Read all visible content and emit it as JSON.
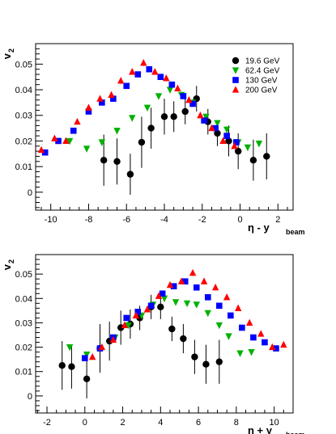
{
  "chart_data": [
    {
      "type": "scatter",
      "ylabel_main": "v",
      "ylabel_sub": "2",
      "xlabel_main": "η - y",
      "xlabel_sub": "beam",
      "xlim": [
        -10.8,
        2.8
      ],
      "ylim": [
        -0.007,
        0.058
      ],
      "xticks": [
        -10,
        -8,
        -6,
        -4,
        -2,
        0,
        2
      ],
      "yticks": [
        0,
        0.01,
        0.02,
        0.03,
        0.04,
        0.05
      ],
      "ytick_labels": [
        "0",
        "0.01",
        "0.02",
        "0.03",
        "0.04",
        "0.05"
      ],
      "legend_position": "top-right",
      "series": [
        {
          "name": "19.6 GeV",
          "marker": "circle",
          "color": "#000000",
          "points": [
            {
              "x": -7.2,
              "y": 0.0125,
              "e": 0.01
            },
            {
              "x": -6.5,
              "y": 0.012,
              "e": 0.009
            },
            {
              "x": -5.8,
              "y": 0.007,
              "e": 0.008
            },
            {
              "x": -5.2,
              "y": 0.0195,
              "e": 0.01
            },
            {
              "x": -4.7,
              "y": 0.025,
              "e": 0.008
            },
            {
              "x": -4.0,
              "y": 0.0295,
              "e": 0.007
            },
            {
              "x": -3.5,
              "y": 0.0295,
              "e": 0.006
            },
            {
              "x": -2.9,
              "y": 0.0315,
              "e": 0.005
            },
            {
              "x": -2.3,
              "y": 0.0365,
              "e": 0.005
            },
            {
              "x": -1.7,
              "y": 0.0275,
              "e": 0.005
            },
            {
              "x": -1.2,
              "y": 0.023,
              "e": 0.005
            },
            {
              "x": -0.6,
              "y": 0.02,
              "e": 0.006
            },
            {
              "x": -0.1,
              "y": 0.016,
              "e": 0.007
            },
            {
              "x": 0.7,
              "y": 0.0125,
              "e": 0.008
            },
            {
              "x": 1.4,
              "y": 0.014,
              "e": 0.009
            }
          ]
        },
        {
          "name": "62.4 GeV",
          "marker": "triangle-down",
          "color": "#00b200",
          "points": [
            {
              "x": -9.0,
              "y": 0.02,
              "e": 0.0012
            },
            {
              "x": -8.1,
              "y": 0.017,
              "e": 0.0012
            },
            {
              "x": -7.3,
              "y": 0.0195,
              "e": 0.0012
            },
            {
              "x": -6.5,
              "y": 0.024,
              "e": 0.0012
            },
            {
              "x": -5.7,
              "y": 0.029,
              "e": 0.0012
            },
            {
              "x": -4.9,
              "y": 0.033,
              "e": 0.0012
            },
            {
              "x": -4.3,
              "y": 0.0375,
              "e": 0.0012
            },
            {
              "x": -3.7,
              "y": 0.04,
              "e": 0.0012
            },
            {
              "x": -3.1,
              "y": 0.038,
              "e": 0.0012
            },
            {
              "x": -2.5,
              "y": 0.035,
              "e": 0.0012
            },
            {
              "x": -1.8,
              "y": 0.0295,
              "e": 0.0012
            },
            {
              "x": -1.2,
              "y": 0.027,
              "e": 0.0012
            },
            {
              "x": -0.7,
              "y": 0.0245,
              "e": 0.0012
            },
            {
              "x": -0.1,
              "y": 0.0195,
              "e": 0.0012
            },
            {
              "x": 0.4,
              "y": 0.0175,
              "e": 0.0012
            },
            {
              "x": 1.0,
              "y": 0.019,
              "e": 0.0012
            }
          ]
        },
        {
          "name": "130 GeV",
          "marker": "square",
          "color": "#0000ff",
          "points": [
            {
              "x": -10.3,
              "y": 0.0155,
              "e": 0.001
            },
            {
              "x": -9.6,
              "y": 0.02,
              "e": 0.001
            },
            {
              "x": -8.8,
              "y": 0.024,
              "e": 0.001
            },
            {
              "x": -8.0,
              "y": 0.0315,
              "e": 0.001
            },
            {
              "x": -7.3,
              "y": 0.035,
              "e": 0.001
            },
            {
              "x": -6.7,
              "y": 0.0365,
              "e": 0.001
            },
            {
              "x": -6.0,
              "y": 0.0415,
              "e": 0.001
            },
            {
              "x": -5.4,
              "y": 0.046,
              "e": 0.001
            },
            {
              "x": -4.8,
              "y": 0.048,
              "e": 0.001
            },
            {
              "x": -4.2,
              "y": 0.045,
              "e": 0.001
            },
            {
              "x": -3.6,
              "y": 0.042,
              "e": 0.001
            },
            {
              "x": -3.0,
              "y": 0.0375,
              "e": 0.001
            },
            {
              "x": -2.5,
              "y": 0.0345,
              "e": 0.001
            },
            {
              "x": -1.9,
              "y": 0.028,
              "e": 0.001
            },
            {
              "x": -1.3,
              "y": 0.025,
              "e": 0.001
            },
            {
              "x": -0.7,
              "y": 0.022,
              "e": 0.001
            },
            {
              "x": -0.2,
              "y": 0.0195,
              "e": 0.001
            }
          ]
        },
        {
          "name": "200 GeV",
          "marker": "triangle-up",
          "color": "#ff0000",
          "points": [
            {
              "x": -10.5,
              "y": 0.0165,
              "e": 0.001
            },
            {
              "x": -9.8,
              "y": 0.021,
              "e": 0.001
            },
            {
              "x": -9.2,
              "y": 0.02,
              "e": 0.001
            },
            {
              "x": -8.6,
              "y": 0.0275,
              "e": 0.001
            },
            {
              "x": -8.0,
              "y": 0.033,
              "e": 0.001
            },
            {
              "x": -7.4,
              "y": 0.0365,
              "e": 0.001
            },
            {
              "x": -6.8,
              "y": 0.038,
              "e": 0.001
            },
            {
              "x": -6.3,
              "y": 0.0435,
              "e": 0.0012
            },
            {
              "x": -5.7,
              "y": 0.047,
              "e": 0.0012
            },
            {
              "x": -5.1,
              "y": 0.0505,
              "e": 0.0012
            },
            {
              "x": -4.5,
              "y": 0.047,
              "e": 0.0012
            },
            {
              "x": -3.9,
              "y": 0.0445,
              "e": 0.0012
            },
            {
              "x": -3.3,
              "y": 0.0405,
              "e": 0.0012
            },
            {
              "x": -2.7,
              "y": 0.036,
              "e": 0.001
            },
            {
              "x": -2.1,
              "y": 0.03,
              "e": 0.001
            },
            {
              "x": -1.5,
              "y": 0.025,
              "e": 0.001
            },
            {
              "x": -0.9,
              "y": 0.02,
              "e": 0.001
            },
            {
              "x": -0.3,
              "y": 0.018,
              "e": 0.001
            }
          ]
        }
      ]
    },
    {
      "type": "scatter",
      "ylabel_main": "v",
      "ylabel_sub": "2",
      "xlabel_main": "η + y",
      "xlabel_sub": "beam",
      "xlim": [
        -2.6,
        11.0
      ],
      "ylim": [
        -0.007,
        0.058
      ],
      "xticks": [
        -2,
        0,
        2,
        4,
        6,
        8,
        10
      ],
      "yticks": [
        0,
        0.01,
        0.02,
        0.03,
        0.04,
        0.05
      ],
      "ytick_labels": [
        "0",
        "0.01",
        "0.02",
        "0.03",
        "0.04",
        "0.05"
      ],
      "legend_position": "none",
      "series": [
        {
          "name": "19.6 GeV",
          "marker": "circle",
          "color": "#000000",
          "points": [
            {
              "x": -1.2,
              "y": 0.0125,
              "e": 0.01
            },
            {
              "x": -0.7,
              "y": 0.012,
              "e": 0.009
            },
            {
              "x": 0.1,
              "y": 0.007,
              "e": 0.008
            },
            {
              "x": 0.8,
              "y": 0.0195,
              "e": 0.01
            },
            {
              "x": 1.3,
              "y": 0.0225,
              "e": 0.008
            },
            {
              "x": 1.9,
              "y": 0.028,
              "e": 0.007
            },
            {
              "x": 2.4,
              "y": 0.0295,
              "e": 0.006
            },
            {
              "x": 2.9,
              "y": 0.032,
              "e": 0.005
            },
            {
              "x": 3.5,
              "y": 0.0365,
              "e": 0.005
            },
            {
              "x": 4.0,
              "y": 0.0365,
              "e": 0.005
            },
            {
              "x": 4.6,
              "y": 0.0275,
              "e": 0.005
            },
            {
              "x": 5.2,
              "y": 0.0235,
              "e": 0.006
            },
            {
              "x": 5.8,
              "y": 0.016,
              "e": 0.007
            },
            {
              "x": 6.4,
              "y": 0.013,
              "e": 0.008
            },
            {
              "x": 7.1,
              "y": 0.014,
              "e": 0.009
            }
          ]
        },
        {
          "name": "62.4 GeV",
          "marker": "triangle-down",
          "color": "#00b200",
          "points": [
            {
              "x": -0.8,
              "y": 0.02,
              "e": 0.0012
            },
            {
              "x": 0.1,
              "y": 0.017,
              "e": 0.0012
            },
            {
              "x": 0.8,
              "y": 0.0195,
              "e": 0.0012
            },
            {
              "x": 1.6,
              "y": 0.024,
              "e": 0.0012
            },
            {
              "x": 2.3,
              "y": 0.029,
              "e": 0.0012
            },
            {
              "x": 3.0,
              "y": 0.033,
              "e": 0.0012
            },
            {
              "x": 3.6,
              "y": 0.0375,
              "e": 0.0012
            },
            {
              "x": 4.2,
              "y": 0.04,
              "e": 0.0012
            },
            {
              "x": 4.8,
              "y": 0.0385,
              "e": 0.0012
            },
            {
              "x": 5.4,
              "y": 0.038,
              "e": 0.0012
            },
            {
              "x": 5.9,
              "y": 0.0375,
              "e": 0.0012
            },
            {
              "x": 6.5,
              "y": 0.034,
              "e": 0.0012
            },
            {
              "x": 7.1,
              "y": 0.029,
              "e": 0.0012
            },
            {
              "x": 7.6,
              "y": 0.0245,
              "e": 0.0012
            },
            {
              "x": 8.2,
              "y": 0.0175,
              "e": 0.0012
            },
            {
              "x": 8.8,
              "y": 0.018,
              "e": 0.0012
            }
          ]
        },
        {
          "name": "130 GeV",
          "marker": "square",
          "color": "#0000ff",
          "points": [
            {
              "x": 0.0,
              "y": 0.0155,
              "e": 0.001
            },
            {
              "x": 0.8,
              "y": 0.0195,
              "e": 0.001
            },
            {
              "x": 1.5,
              "y": 0.024,
              "e": 0.001
            },
            {
              "x": 2.2,
              "y": 0.032,
              "e": 0.001
            },
            {
              "x": 2.8,
              "y": 0.0345,
              "e": 0.001
            },
            {
              "x": 3.5,
              "y": 0.037,
              "e": 0.001
            },
            {
              "x": 4.1,
              "y": 0.042,
              "e": 0.001
            },
            {
              "x": 4.7,
              "y": 0.045,
              "e": 0.001
            },
            {
              "x": 5.3,
              "y": 0.047,
              "e": 0.001
            },
            {
              "x": 5.9,
              "y": 0.0445,
              "e": 0.001
            },
            {
              "x": 6.5,
              "y": 0.0405,
              "e": 0.001
            },
            {
              "x": 7.1,
              "y": 0.037,
              "e": 0.001
            },
            {
              "x": 7.7,
              "y": 0.033,
              "e": 0.001
            },
            {
              "x": 8.3,
              "y": 0.028,
              "e": 0.001
            },
            {
              "x": 8.9,
              "y": 0.024,
              "e": 0.001
            },
            {
              "x": 9.5,
              "y": 0.022,
              "e": 0.001
            },
            {
              "x": 10.1,
              "y": 0.0195,
              "e": 0.001
            }
          ]
        },
        {
          "name": "200 GeV",
          "marker": "triangle-up",
          "color": "#ff0000",
          "points": [
            {
              "x": 0.4,
              "y": 0.016,
              "e": 0.001
            },
            {
              "x": 0.9,
              "y": 0.02,
              "e": 0.001
            },
            {
              "x": 1.5,
              "y": 0.023,
              "e": 0.001
            },
            {
              "x": 2.1,
              "y": 0.029,
              "e": 0.001
            },
            {
              "x": 2.7,
              "y": 0.033,
              "e": 0.001
            },
            {
              "x": 3.3,
              "y": 0.0355,
              "e": 0.001
            },
            {
              "x": 3.9,
              "y": 0.041,
              "e": 0.0012
            },
            {
              "x": 4.5,
              "y": 0.0455,
              "e": 0.0012
            },
            {
              "x": 5.1,
              "y": 0.047,
              "e": 0.0012
            },
            {
              "x": 5.7,
              "y": 0.0505,
              "e": 0.0012
            },
            {
              "x": 6.3,
              "y": 0.047,
              "e": 0.0012
            },
            {
              "x": 6.9,
              "y": 0.0445,
              "e": 0.0012
            },
            {
              "x": 7.5,
              "y": 0.0405,
              "e": 0.0012
            },
            {
              "x": 8.1,
              "y": 0.036,
              "e": 0.001
            },
            {
              "x": 8.7,
              "y": 0.03,
              "e": 0.001
            },
            {
              "x": 9.3,
              "y": 0.0255,
              "e": 0.001
            },
            {
              "x": 9.9,
              "y": 0.02,
              "e": 0.001
            },
            {
              "x": 10.5,
              "y": 0.021,
              "e": 0.001
            }
          ]
        }
      ]
    }
  ]
}
